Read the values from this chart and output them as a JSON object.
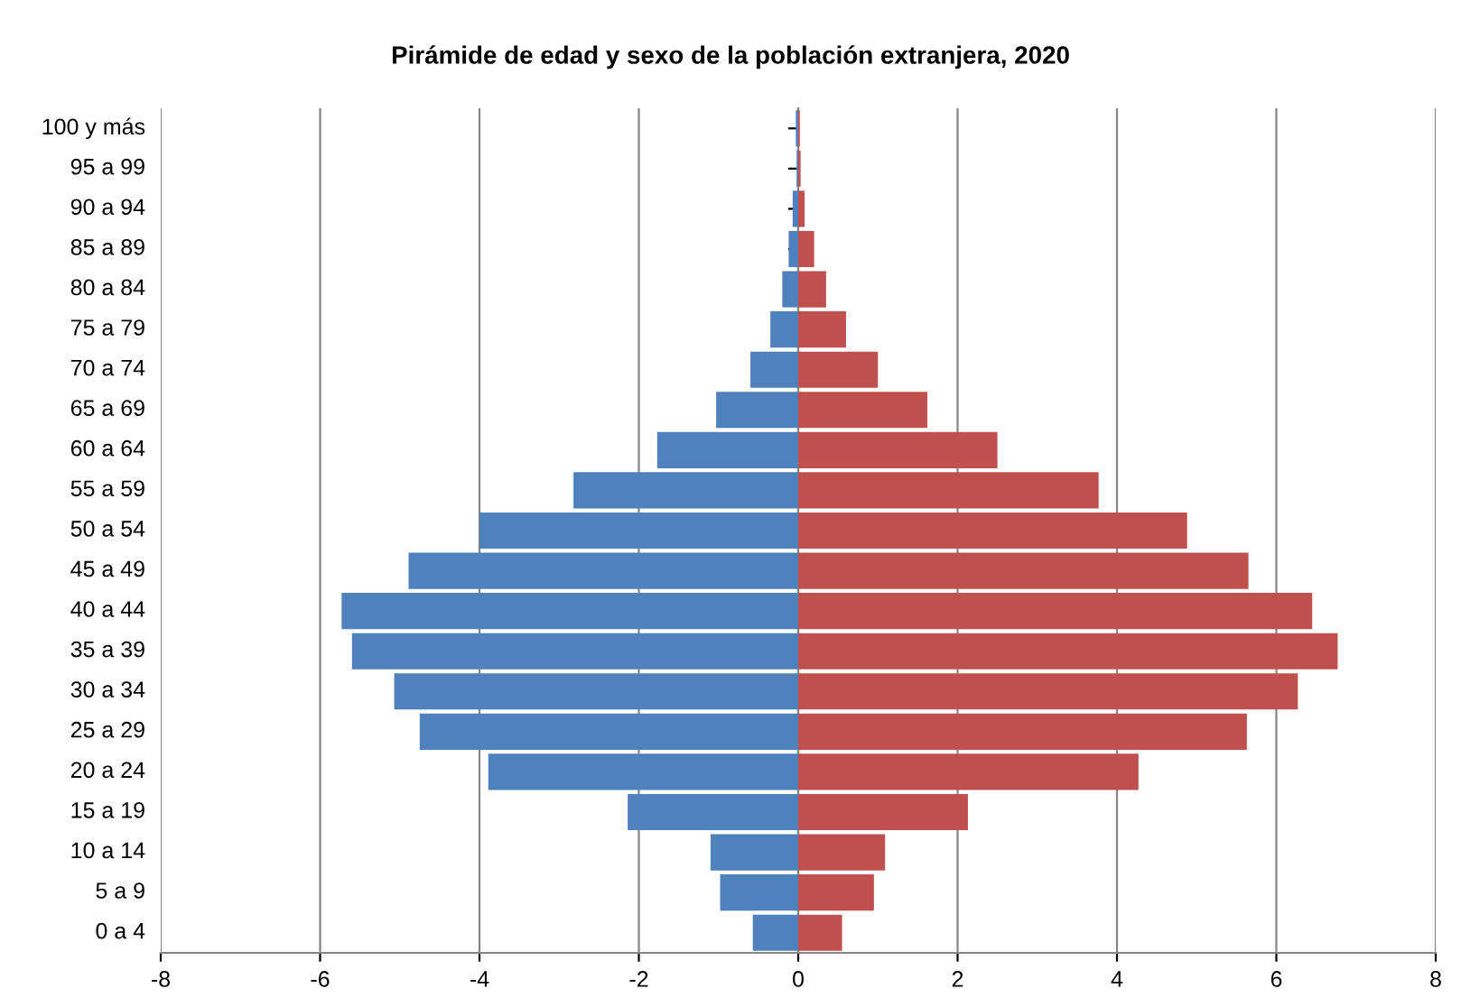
{
  "chart_data": {
    "type": "bar",
    "orientation": "horizontal",
    "stacked": true,
    "title": "Pirámide de edad y sexo de la población extranjera, 2020",
    "categories": [
      "100 y más",
      "95 a 99",
      "90 a 94",
      "85 a 89",
      "80 a 84",
      "75 a 79",
      "70 a 74",
      "65 a 69",
      "60 a 64",
      "55 a 59",
      "50 a 54",
      "45 a 49",
      "40 a 44",
      "35 a 39",
      "30 a 34",
      "25 a 29",
      "20 a 24",
      "15 a 19",
      "10 a 14",
      "5 a 9",
      "0 a 4"
    ],
    "series": [
      {
        "color": "#4f81bd",
        "values": [
          -0.03,
          -0.02,
          -0.07,
          -0.12,
          -0.2,
          -0.35,
          -0.6,
          -1.03,
          -1.77,
          -2.82,
          -4.0,
          -4.89,
          -5.73,
          -5.6,
          -5.07,
          -4.75,
          -3.89,
          -2.14,
          -1.1,
          -0.98,
          -0.57
        ]
      },
      {
        "color": "#c0504d",
        "values": [
          0.02,
          0.03,
          0.08,
          0.2,
          0.35,
          0.6,
          1.0,
          1.62,
          2.5,
          3.77,
          4.88,
          5.65,
          6.45,
          6.77,
          6.27,
          5.63,
          4.27,
          2.13,
          1.09,
          0.95,
          0.55
        ]
      }
    ],
    "xlim": [
      -8,
      8
    ],
    "xticks": [
      -8,
      -6,
      -4,
      -2,
      0,
      2,
      4,
      6,
      8
    ],
    "grid": "x"
  }
}
